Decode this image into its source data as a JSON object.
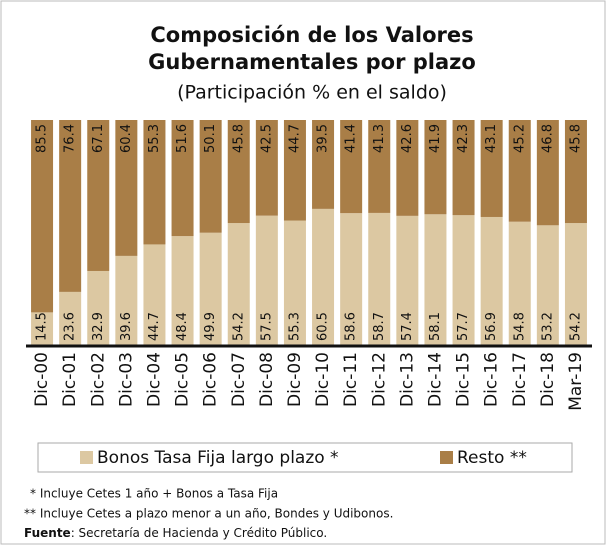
{
  "chart_data": {
    "type": "stacked_bar",
    "title": [
      "Composición de los Valores",
      "Gubernamentales por plazo"
    ],
    "subtitle": "(Participación % en el saldo)",
    "categories": [
      "Dic-00",
      "Dic-01",
      "Dic-02",
      "Dic-03",
      "Dic-04",
      "Dic-05",
      "Dic-06",
      "Dic-07",
      "Dic-08",
      "Dic-09",
      "Dic-10",
      "Dic-11",
      "Dic-12",
      "Dic-13",
      "Dic-14",
      "Dic-15",
      "Dic-16",
      "Dic-17",
      "Dic-18",
      "Mar-19"
    ],
    "series": [
      {
        "name": "Bonos Tasa Fija largo plazo *",
        "color": "#dcc8a2",
        "values": [
          14.5,
          23.6,
          32.9,
          39.6,
          44.7,
          48.4,
          49.9,
          54.2,
          57.5,
          55.3,
          60.5,
          58.6,
          58.7,
          57.4,
          58.1,
          57.7,
          56.9,
          54.8,
          53.2,
          54.2
        ]
      },
      {
        "name": "Resto **",
        "color": "#a97e47",
        "values": [
          85.5,
          76.4,
          67.1,
          60.4,
          55.3,
          51.6,
          50.1,
          45.8,
          42.5,
          44.7,
          39.5,
          41.4,
          41.3,
          42.6,
          41.9,
          42.3,
          43.1,
          45.2,
          46.8,
          45.8
        ]
      }
    ],
    "notes": [
      "* Incluye Cetes 1 año + Bonos a Tasa Fija",
      "** Incluye Cetes a plazo menor a un año, Bondes y Udibonos."
    ],
    "source": {
      "label": "Fuente",
      "text": ": Secretaría de Hacienda y Crédito Público."
    }
  }
}
